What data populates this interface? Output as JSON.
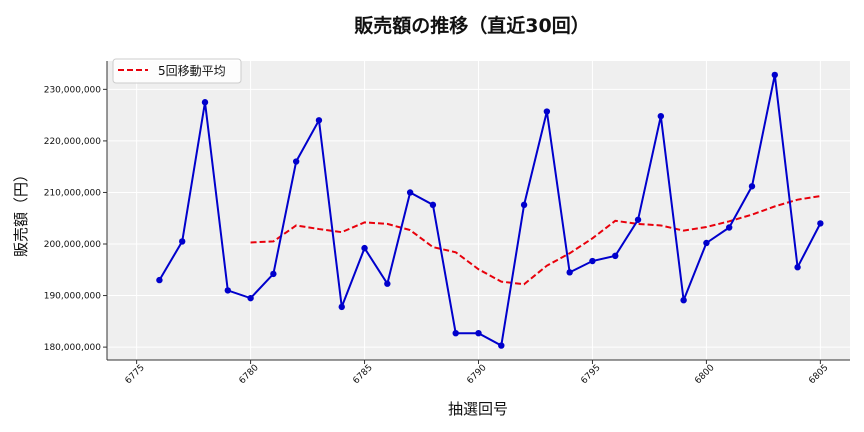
{
  "chart_data": {
    "type": "line",
    "title": "販売額の推移（直近30回）",
    "xlabel": "抽選回号",
    "ylabel": "販売額（円）",
    "xlim": [
      6773.7,
      6806.3
    ],
    "ylim": [
      177500000,
      235500000
    ],
    "xticks": [
      6775,
      6780,
      6785,
      6790,
      6795,
      6800,
      6805
    ],
    "xtick_labels": [
      "6775",
      "6780",
      "6785",
      "6790",
      "6795",
      "6800",
      "6805"
    ],
    "yticks": [
      180000000,
      190000000,
      200000000,
      210000000,
      220000000,
      230000000
    ],
    "ytick_labels": [
      "180,000,000",
      "190,000,000",
      "200,000,000",
      "210,000,000",
      "220,000,000",
      "230,000,000"
    ],
    "grid": true,
    "legend_position": "top-left",
    "x": [
      6776,
      6777,
      6778,
      6779,
      6780,
      6781,
      6782,
      6783,
      6784,
      6785,
      6786,
      6787,
      6788,
      6789,
      6790,
      6791,
      6792,
      6793,
      6794,
      6795,
      6796,
      6797,
      6798,
      6799,
      6800,
      6801,
      6802,
      6803,
      6804,
      6805
    ],
    "series": [
      {
        "values": [
          193000000,
          200500000,
          227500000,
          191000000,
          189500000,
          194200000,
          216000000,
          224000000,
          187800000,
          199200000,
          192300000,
          210000000,
          207600000,
          182700000,
          182700000,
          180300000,
          207600000,
          225700000,
          194500000,
          196700000,
          197700000,
          204700000,
          224800000,
          189100000,
          200200000,
          203200000,
          211200000,
          232800000,
          195500000,
          204000000
        ],
        "color": "#0000cc",
        "style": "solid-marker"
      },
      {
        "name": "5回移動平均",
        "values": [
          null,
          null,
          null,
          null,
          200300000,
          200500000,
          203600000,
          202900000,
          202300000,
          204200000,
          203900000,
          202700000,
          199400000,
          198400000,
          195100000,
          192700000,
          192200000,
          195800000,
          198200000,
          201100000,
          204500000,
          203900000,
          203600000,
          202600000,
          203300000,
          204400000,
          205700000,
          207300000,
          208600000,
          209300000
        ],
        "color": "#e8000b",
        "style": "dashed"
      }
    ]
  }
}
